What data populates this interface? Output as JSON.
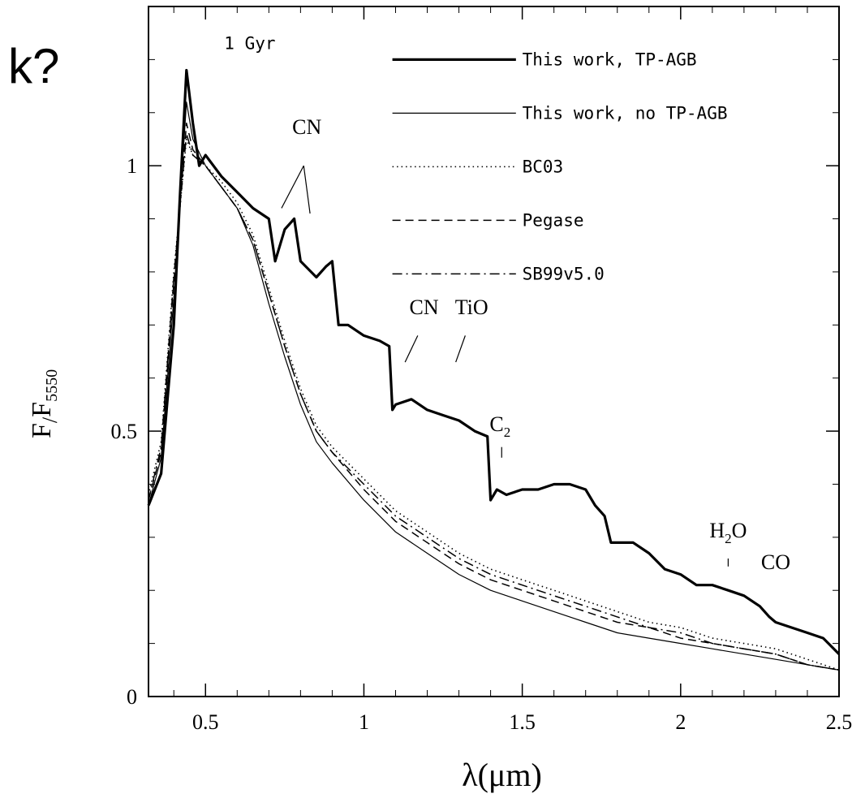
{
  "slide_fragment": "k?",
  "chart_data": {
    "type": "line",
    "xlabel": "λ(μm)",
    "ylabel": {
      "main": "F",
      "sep": "/",
      "sub_f": "F",
      "sub": "5550"
    },
    "panel_label": "1 Gyr",
    "xlim": [
      0.32,
      2.5
    ],
    "ylim": [
      0,
      1.3
    ],
    "x_ticks": [
      0.5,
      1,
      1.5,
      2,
      2.5
    ],
    "x_tick_labels": [
      "0.5",
      "1",
      "1.5",
      "2",
      "2.5"
    ],
    "y_ticks": [
      0,
      0.5,
      1
    ],
    "y_tick_labels": [
      "0",
      "0.5",
      "1"
    ],
    "grid": false,
    "legend_position": "top-right",
    "series": [
      {
        "name": "This work, TP-AGB",
        "style": "thick",
        "x": [
          0.32,
          0.36,
          0.4,
          0.42,
          0.44,
          0.46,
          0.48,
          0.5,
          0.55,
          0.6,
          0.65,
          0.7,
          0.72,
          0.75,
          0.78,
          0.8,
          0.85,
          0.88,
          0.9,
          0.92,
          0.95,
          1.0,
          1.05,
          1.08,
          1.09,
          1.1,
          1.15,
          1.2,
          1.25,
          1.3,
          1.35,
          1.39,
          1.4,
          1.42,
          1.45,
          1.5,
          1.55,
          1.6,
          1.65,
          1.7,
          1.73,
          1.76,
          1.78,
          1.8,
          1.85,
          1.9,
          1.95,
          2.0,
          2.05,
          2.1,
          2.15,
          2.2,
          2.25,
          2.28,
          2.3,
          2.35,
          2.4,
          2.45,
          2.5
        ],
        "y": [
          0.36,
          0.42,
          0.7,
          0.95,
          1.18,
          1.08,
          1.0,
          1.02,
          0.98,
          0.95,
          0.92,
          0.9,
          0.82,
          0.88,
          0.9,
          0.82,
          0.79,
          0.81,
          0.82,
          0.7,
          0.7,
          0.68,
          0.67,
          0.66,
          0.54,
          0.55,
          0.56,
          0.54,
          0.53,
          0.52,
          0.5,
          0.49,
          0.37,
          0.39,
          0.38,
          0.39,
          0.39,
          0.4,
          0.4,
          0.39,
          0.36,
          0.34,
          0.29,
          0.29,
          0.29,
          0.27,
          0.24,
          0.23,
          0.21,
          0.21,
          0.2,
          0.19,
          0.17,
          0.15,
          0.14,
          0.13,
          0.12,
          0.11,
          0.08
        ]
      },
      {
        "name": "This work, no TP-AGB",
        "style": "thin",
        "x": [
          0.32,
          0.36,
          0.4,
          0.44,
          0.46,
          0.5,
          0.55,
          0.6,
          0.65,
          0.7,
          0.75,
          0.8,
          0.85,
          0.9,
          1.0,
          1.1,
          1.2,
          1.3,
          1.4,
          1.5,
          1.6,
          1.7,
          1.8,
          1.9,
          2.0,
          2.1,
          2.2,
          2.3,
          2.4,
          2.5
        ],
        "y": [
          0.36,
          0.45,
          0.75,
          1.12,
          1.05,
          1.0,
          0.96,
          0.92,
          0.85,
          0.74,
          0.64,
          0.55,
          0.48,
          0.44,
          0.37,
          0.31,
          0.27,
          0.23,
          0.2,
          0.18,
          0.16,
          0.14,
          0.12,
          0.11,
          0.1,
          0.09,
          0.08,
          0.07,
          0.06,
          0.05
        ]
      },
      {
        "name": "BC03",
        "style": "dotted",
        "x": [
          0.32,
          0.36,
          0.4,
          0.44,
          0.46,
          0.5,
          0.55,
          0.6,
          0.65,
          0.7,
          0.75,
          0.8,
          0.85,
          0.9,
          1.0,
          1.1,
          1.2,
          1.3,
          1.4,
          1.5,
          1.6,
          1.7,
          1.8,
          1.9,
          2.0,
          2.1,
          2.2,
          2.3,
          2.4,
          2.5
        ],
        "y": [
          0.38,
          0.48,
          0.8,
          1.05,
          1.02,
          1.0,
          0.97,
          0.93,
          0.87,
          0.77,
          0.67,
          0.58,
          0.51,
          0.47,
          0.41,
          0.35,
          0.31,
          0.27,
          0.24,
          0.22,
          0.2,
          0.18,
          0.16,
          0.14,
          0.13,
          0.11,
          0.1,
          0.09,
          0.07,
          0.05
        ]
      },
      {
        "name": "Pegase",
        "style": "dashed",
        "x": [
          0.32,
          0.36,
          0.4,
          0.44,
          0.46,
          0.5,
          0.55,
          0.6,
          0.65,
          0.7,
          0.75,
          0.8,
          0.85,
          0.9,
          1.0,
          1.1,
          1.2,
          1.3,
          1.4,
          1.5,
          1.6,
          1.7,
          1.8,
          1.9,
          2.0,
          2.1,
          2.2,
          2.3,
          2.4,
          2.5
        ],
        "y": [
          0.37,
          0.46,
          0.78,
          1.08,
          1.03,
          1.0,
          0.96,
          0.92,
          0.86,
          0.76,
          0.66,
          0.57,
          0.5,
          0.46,
          0.39,
          0.33,
          0.29,
          0.25,
          0.22,
          0.2,
          0.18,
          0.16,
          0.14,
          0.13,
          0.11,
          0.1,
          0.09,
          0.08,
          0.06,
          0.05
        ]
      },
      {
        "name": "SB99v5.0",
        "style": "dashdot",
        "x": [
          0.32,
          0.36,
          0.4,
          0.44,
          0.46,
          0.5,
          0.55,
          0.6,
          0.65,
          0.7,
          0.75,
          0.8,
          0.85,
          0.9,
          1.0,
          1.1,
          1.2,
          1.3,
          1.4,
          1.5,
          1.6,
          1.7,
          1.8,
          1.9,
          2.0,
          2.1,
          2.2,
          2.3,
          2.4,
          2.5
        ],
        "y": [
          0.37,
          0.47,
          0.79,
          1.06,
          1.02,
          1.0,
          0.96,
          0.92,
          0.86,
          0.76,
          0.66,
          0.57,
          0.5,
          0.46,
          0.4,
          0.34,
          0.3,
          0.26,
          0.23,
          0.21,
          0.19,
          0.17,
          0.15,
          0.13,
          0.12,
          0.1,
          0.09,
          0.08,
          0.06,
          0.05
        ]
      }
    ],
    "annotations": [
      {
        "text": "CN",
        "x": 0.82,
        "y": 1.06,
        "lines": [
          [
            0.74,
            0.92,
            0.81,
            1.0
          ],
          [
            0.81,
            1.0,
            0.83,
            0.91
          ]
        ]
      },
      {
        "text": "CN",
        "x": 1.19,
        "y": 0.72,
        "lines": [
          [
            1.17,
            0.68,
            1.13,
            0.63
          ]
        ]
      },
      {
        "text": "TiO",
        "x": 1.34,
        "y": 0.72,
        "lines": [
          [
            1.32,
            0.68,
            1.29,
            0.63
          ]
        ]
      },
      {
        "text": "C",
        "sub": "2",
        "x": 1.43,
        "y": 0.5,
        "lines": [
          [
            1.435,
            0.47,
            1.435,
            0.45
          ]
        ]
      },
      {
        "text": "H",
        "sub": "2",
        "tail": "O",
        "x": 2.15,
        "y": 0.3,
        "lines": [
          [
            2.15,
            0.26,
            2.15,
            0.245
          ]
        ]
      },
      {
        "text": "CO",
        "x": 2.3,
        "y": 0.24,
        "lines": []
      }
    ]
  }
}
